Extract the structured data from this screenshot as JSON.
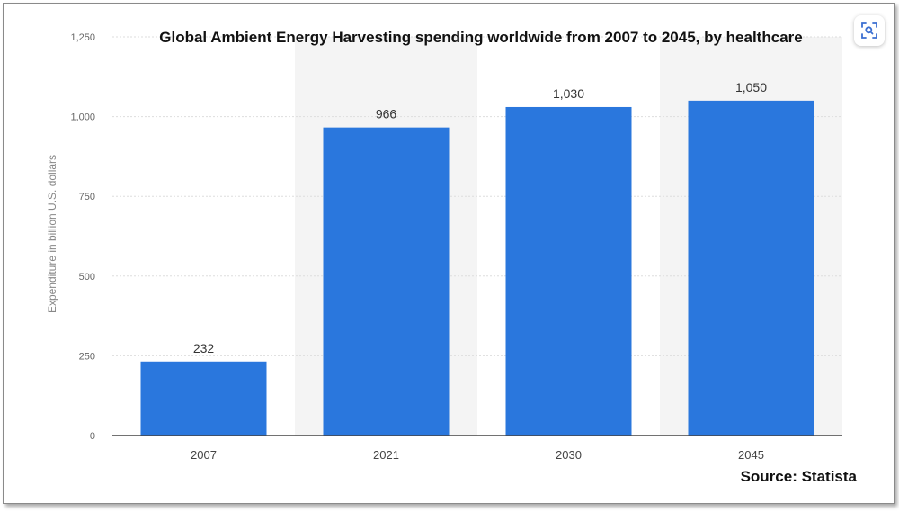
{
  "chart_data": {
    "type": "bar",
    "title": "Global Ambient Energy Harvesting spending worldwide from 2007 to 2045, by healthcare",
    "ylabel": "Expenditure in billion U.S. dollars",
    "xlabel": "",
    "categories": [
      "2007",
      "2021",
      "2030",
      "2045"
    ],
    "values": [
      232,
      966,
      1030,
      1050
    ],
    "value_labels": [
      "232",
      "966",
      "1,030",
      "1,050"
    ],
    "ylim": [
      0,
      1250
    ],
    "yticks": [
      0,
      250,
      500,
      750,
      1000,
      1250
    ],
    "ytick_labels": [
      "0",
      "250",
      "500",
      "750",
      "1,000",
      "1,250"
    ],
    "grid": true,
    "bar_color": "#2a77dd",
    "source": "Source: Statista"
  },
  "toolbar": {
    "zoom_icon": "lens-zoom-icon"
  }
}
